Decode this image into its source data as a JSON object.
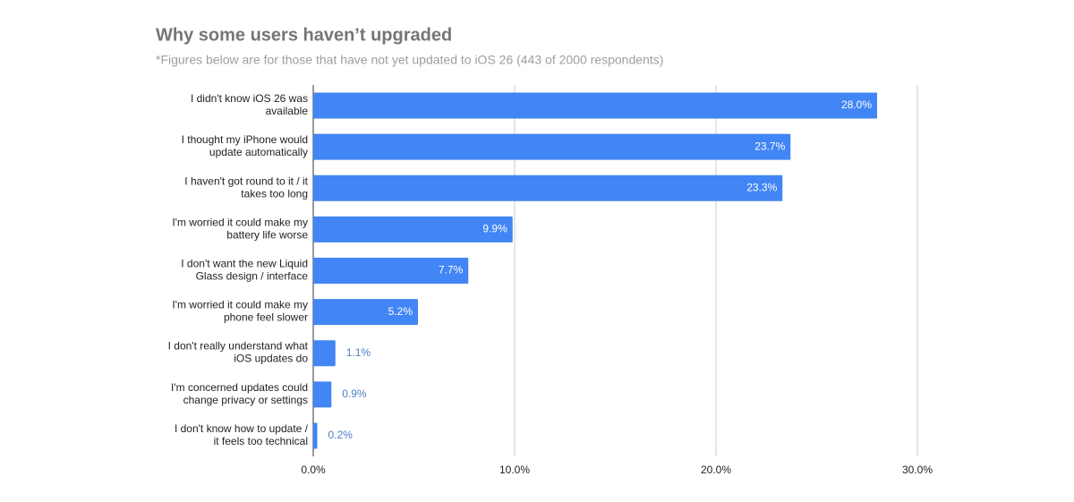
{
  "chart_data": {
    "type": "bar",
    "orientation": "horizontal",
    "title": "Why some users haven’t upgraded",
    "subtitle": "*Figures below are for those that have not yet updated to iOS 26 (443 of 2000 respondents)",
    "categories": [
      "I didn't know iOS 26 was available",
      "I thought my iPhone would update automatically",
      "I haven't got round to it / it takes too long",
      "I'm worried it could make my battery life worse",
      "I don't want the new Liquid Glass design / interface",
      "I'm worried it could make my phone feel slower",
      "I don't really understand what iOS updates do",
      "I'm concerned updates could change privacy or settings",
      "I don't know how to update / it feels too technical"
    ],
    "values": [
      28.0,
      23.7,
      23.3,
      9.9,
      7.7,
      5.2,
      1.1,
      0.9,
      0.2
    ],
    "value_labels": [
      "28.0%",
      "23.7%",
      "23.3%",
      "9.9%",
      "7.7%",
      "5.2%",
      "1.1%",
      "0.9%",
      "0.2%"
    ],
    "color": "#4285f4",
    "xlim": [
      0,
      30
    ],
    "xticks": [
      {
        "value": 0,
        "label": "0.0%"
      },
      {
        "value": 10,
        "label": "10.0%"
      },
      {
        "value": 20,
        "label": "20.0%"
      },
      {
        "value": 30,
        "label": "30.0%"
      }
    ],
    "grid": true
  }
}
